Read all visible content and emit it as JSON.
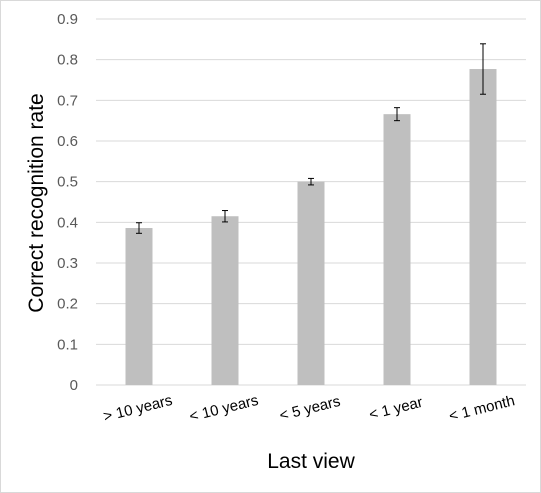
{
  "chart_data": {
    "type": "bar",
    "title": "",
    "xlabel": "Last view",
    "ylabel": "Correct recognition rate",
    "ylim": [
      0,
      0.9
    ],
    "yticks": [
      "0",
      "0.1",
      "0.2",
      "0.3",
      "0.4",
      "0.5",
      "0.6",
      "0.7",
      "0.8",
      "0.9"
    ],
    "categories": [
      "> 10 years",
      "< 10 years",
      "< 5 years",
      "< 1 year",
      "< 1 month"
    ],
    "values": [
      0.386,
      0.415,
      0.5,
      0.666,
      0.777
    ],
    "error": [
      0.013,
      0.014,
      0.008,
      0.016,
      0.062
    ],
    "grid": true,
    "legend": "none",
    "colors": {
      "bar": "#bfbfbf",
      "grid": "#d9d9d9",
      "error_bar": "#000000",
      "axis": "#d9d9d9"
    }
  }
}
